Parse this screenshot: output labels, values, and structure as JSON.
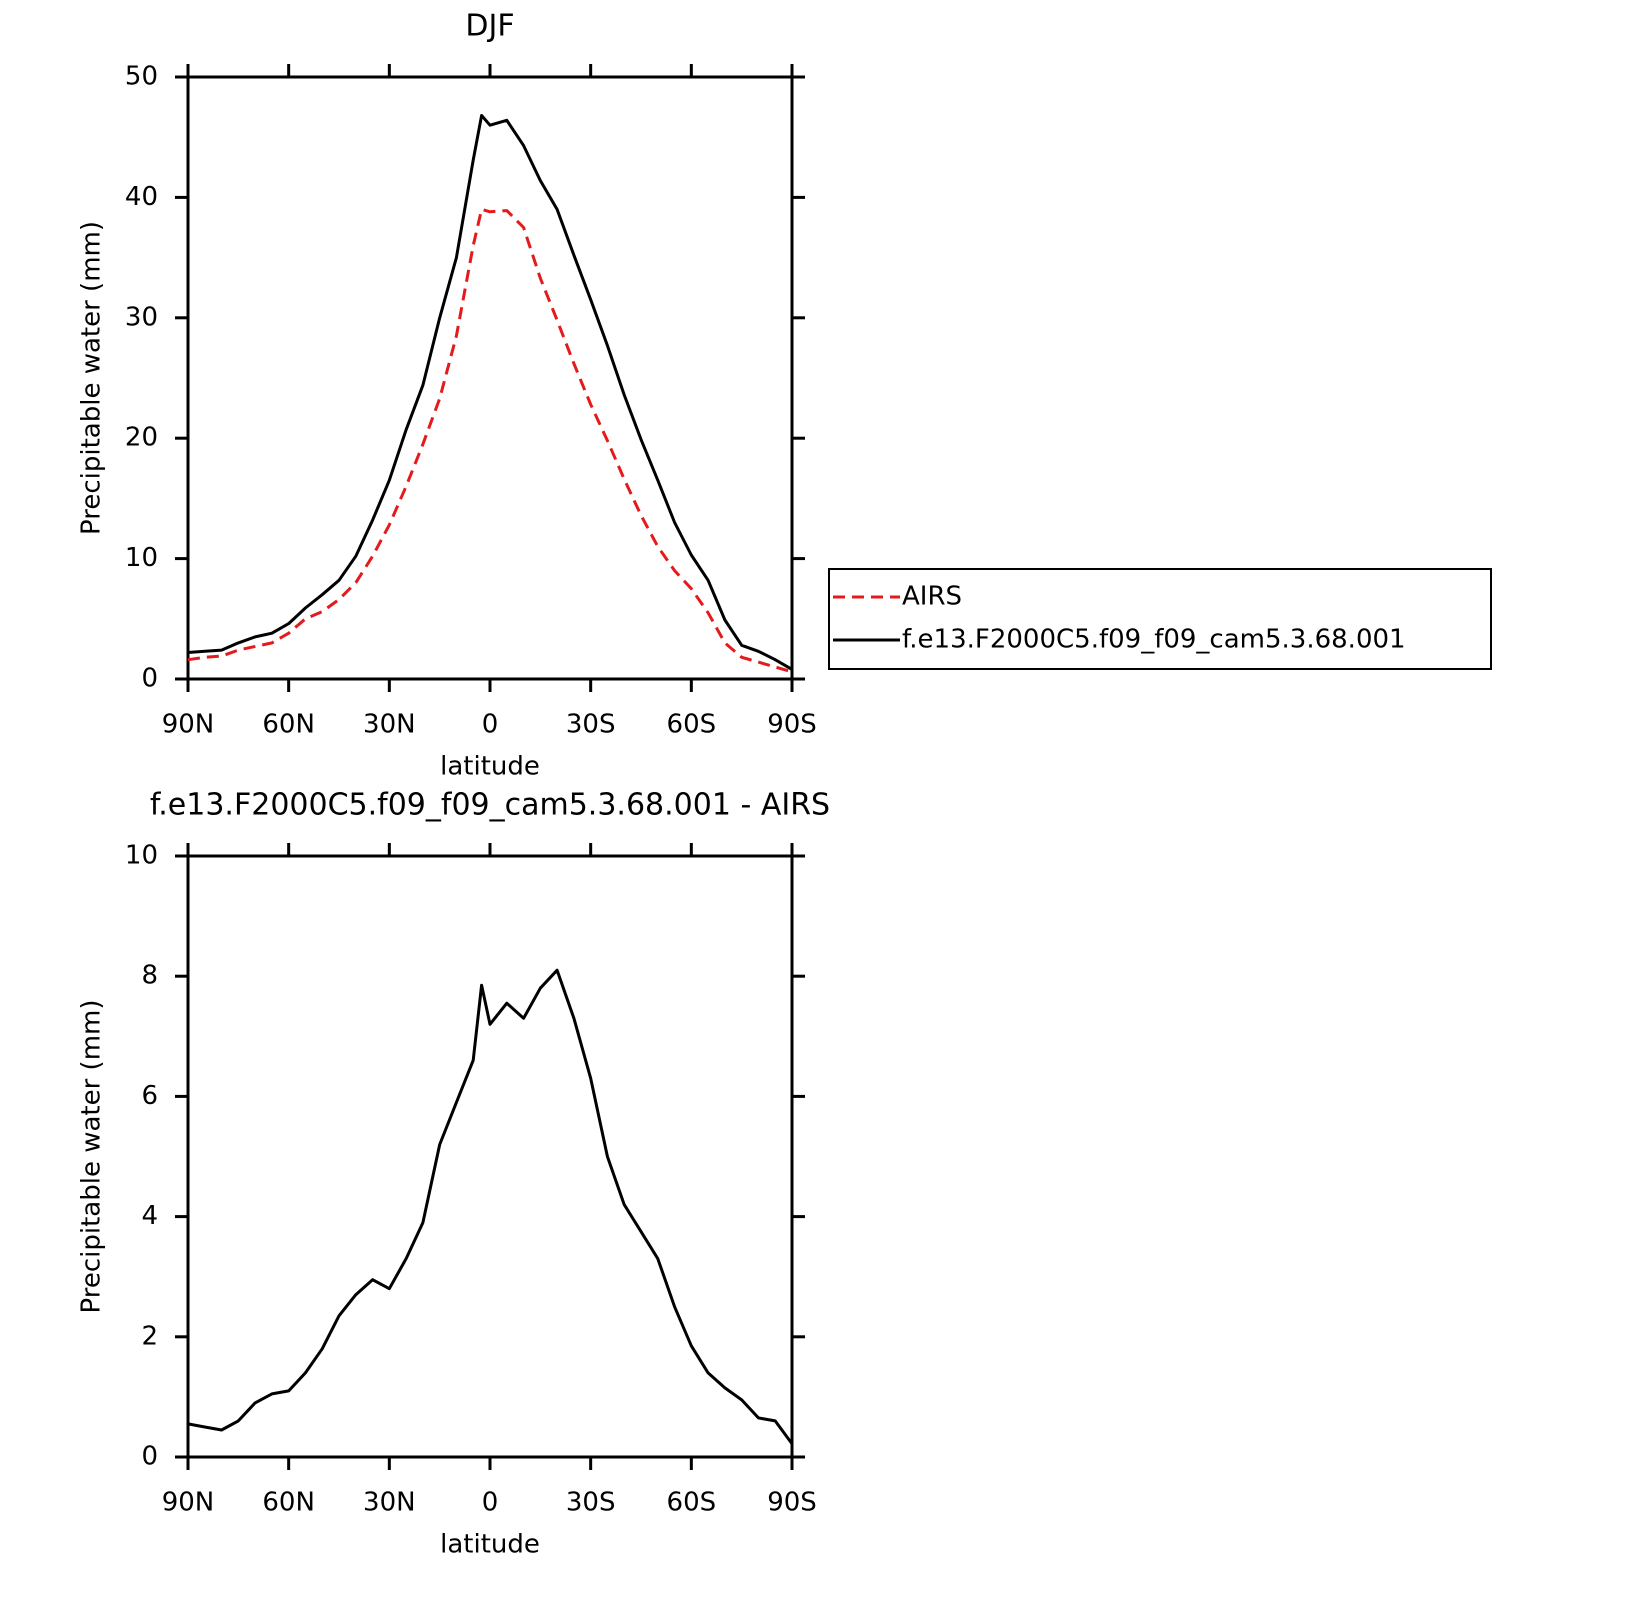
{
  "chart_data": [
    {
      "type": "line",
      "title": "DJF",
      "xlabel": "latitude",
      "ylabel": "Precipitable water (mm)",
      "x": [
        90,
        85,
        80,
        75,
        70,
        65,
        60,
        55,
        50,
        45,
        40,
        35,
        30,
        25,
        20,
        15,
        10,
        5,
        2.5,
        0,
        -5,
        -10,
        -15,
        -20,
        -25,
        -30,
        -35,
        -40,
        -45,
        -50,
        -55,
        -60,
        -65,
        -70,
        -75,
        -80,
        -85,
        -90
      ],
      "xlim": [
        90,
        -90
      ],
      "xticks": [
        {
          "value": 90,
          "label": "90N"
        },
        {
          "value": 60,
          "label": "60N"
        },
        {
          "value": 30,
          "label": "30N"
        },
        0,
        {
          "value": -30,
          "label": "30S"
        },
        {
          "value": -60,
          "label": "60S"
        },
        {
          "value": -90,
          "label": "90S"
        }
      ],
      "ylim": [
        0,
        50
      ],
      "yticks": [
        0,
        10,
        20,
        30,
        40,
        50
      ],
      "series": [
        {
          "name": "AIRS",
          "color": "#e41a1c",
          "dashed": true,
          "values": [
            1.6,
            1.8,
            1.9,
            2.4,
            2.7,
            3.0,
            3.8,
            5.0,
            5.6,
            6.6,
            8.0,
            10.2,
            12.8,
            16.0,
            19.5,
            23.3,
            28.5,
            36.0,
            39.0,
            38.8,
            38.9,
            37.5,
            33.3,
            29.8,
            26.2,
            22.8,
            19.8,
            16.6,
            13.6,
            11.0,
            9.0,
            7.5,
            5.5,
            3.0,
            1.8,
            1.4,
            1.0,
            0.6
          ]
        },
        {
          "name": "f.e13.F2000C5.f09_f09_cam5.3.68.001",
          "color": "#000000",
          "dashed": false,
          "values": [
            2.2,
            2.3,
            2.4,
            3.0,
            3.5,
            3.8,
            4.6,
            5.9,
            7.0,
            8.2,
            10.2,
            13.2,
            16.5,
            20.7,
            24.4,
            30.0,
            35.0,
            43.1,
            46.8,
            46.0,
            46.4,
            44.3,
            41.4,
            39.0,
            35.2,
            31.5,
            27.7,
            23.6,
            19.9,
            16.5,
            13.0,
            10.3,
            8.2,
            4.9,
            2.8,
            2.3,
            1.6,
            0.8
          ]
        }
      ]
    },
    {
      "type": "line",
      "title": "f.e13.F2000C5.f09_f09_cam5.3.68.001 - AIRS",
      "xlabel": "latitude",
      "ylabel": "Precipitable water (mm)",
      "x": [
        90,
        85,
        80,
        75,
        70,
        65,
        60,
        55,
        50,
        45,
        40,
        35,
        30,
        25,
        20,
        15,
        10,
        5,
        2.5,
        0,
        -5,
        -10,
        -15,
        -20,
        -25,
        -30,
        -35,
        -40,
        -45,
        -50,
        -55,
        -60,
        -65,
        -70,
        -75,
        -80,
        -85,
        -90
      ],
      "xlim": [
        90,
        -90
      ],
      "xticks": [
        {
          "value": 90,
          "label": "90N"
        },
        {
          "value": 60,
          "label": "60N"
        },
        {
          "value": 30,
          "label": "30N"
        },
        0,
        {
          "value": -30,
          "label": "30S"
        },
        {
          "value": -60,
          "label": "60S"
        },
        {
          "value": -90,
          "label": "90S"
        }
      ],
      "ylim": [
        0,
        10
      ],
      "yticks": [
        0,
        2,
        4,
        6,
        8,
        10
      ],
      "color": "#000000",
      "values": [
        0.55,
        0.5,
        0.45,
        0.6,
        0.9,
        1.05,
        1.1,
        1.4,
        1.8,
        2.35,
        2.7,
        2.95,
        2.8,
        3.3,
        3.9,
        5.2,
        5.9,
        6.6,
        7.85,
        7.2,
        7.55,
        7.3,
        7.8,
        8.1,
        7.3,
        6.3,
        5.0,
        4.2,
        3.75,
        3.3,
        2.5,
        1.85,
        1.4,
        1.15,
        0.95,
        0.65,
        0.6,
        0.22
      ]
    }
  ]
}
